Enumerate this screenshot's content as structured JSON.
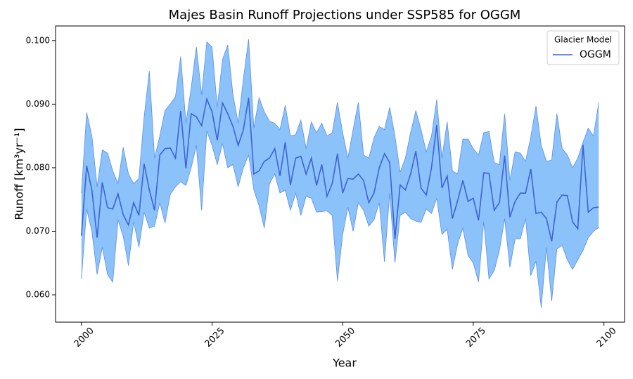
{
  "chart_data": {
    "type": "line-band",
    "title": "Majes Basin Runoff Projections under SSP585 for OGGM",
    "x_label": "Year",
    "y_label": "Runoff [km³yr⁻¹]",
    "legend_title": "Glacier Model",
    "legend_position": "upper right",
    "xlim": [
      1995.05,
      2103.95
    ],
    "ylim": [
      0.0557,
      0.1023
    ],
    "xticks": [
      2000,
      2025,
      2050,
      2075,
      2100
    ],
    "yticks": [
      {
        "value": 0.06,
        "label": "0.060"
      },
      {
        "value": 0.07,
        "label": "0.070"
      },
      {
        "value": 0.08,
        "label": "0.080"
      },
      {
        "value": 0.09,
        "label": "0.090"
      },
      {
        "value": 0.1,
        "label": "0.100"
      }
    ],
    "x": [
      2000,
      2001,
      2002,
      2003,
      2004,
      2005,
      2006,
      2007,
      2008,
      2009,
      2010,
      2011,
      2012,
      2013,
      2014,
      2015,
      2016,
      2017,
      2018,
      2019,
      2020,
      2021,
      2022,
      2023,
      2024,
      2025,
      2026,
      2027,
      2028,
      2029,
      2030,
      2031,
      2032,
      2033,
      2034,
      2035,
      2036,
      2037,
      2038,
      2039,
      2040,
      2041,
      2042,
      2043,
      2044,
      2045,
      2046,
      2047,
      2048,
      2049,
      2050,
      2051,
      2052,
      2053,
      2054,
      2055,
      2056,
      2057,
      2058,
      2059,
      2060,
      2061,
      2062,
      2063,
      2064,
      2065,
      2066,
      2067,
      2068,
      2069,
      2070,
      2071,
      2072,
      2073,
      2074,
      2075,
      2076,
      2077,
      2078,
      2079,
      2080,
      2081,
      2082,
      2083,
      2084,
      2085,
      2086,
      2087,
      2088,
      2089,
      2090,
      2091,
      2092,
      2093,
      2094,
      2095,
      2096,
      2097,
      2098,
      2099
    ],
    "series": [
      {
        "name": "OGGM",
        "color": "#3c63d6",
        "band_color": "#8cc2fa",
        "band_edge": "#5b8ee6",
        "values": [
          0.0693,
          0.0803,
          0.0765,
          0.069,
          0.0777,
          0.0737,
          0.0735,
          0.0759,
          0.0726,
          0.071,
          0.0745,
          0.0725,
          0.0806,
          0.0765,
          0.0733,
          0.082,
          0.083,
          0.0831,
          0.0815,
          0.0889,
          0.0799,
          0.0885,
          0.088,
          0.0866,
          0.0908,
          0.0888,
          0.0843,
          0.0902,
          0.0885,
          0.0865,
          0.0835,
          0.086,
          0.091,
          0.079,
          0.0795,
          0.081,
          0.0815,
          0.083,
          0.0787,
          0.084,
          0.0773,
          0.0815,
          0.0818,
          0.079,
          0.0815,
          0.0772,
          0.0805,
          0.0755,
          0.0775,
          0.0822,
          0.076,
          0.0783,
          0.0782,
          0.079,
          0.078,
          0.0745,
          0.076,
          0.08,
          0.0822,
          0.0808,
          0.0688,
          0.0773,
          0.0765,
          0.079,
          0.0826,
          0.0768,
          0.0757,
          0.08,
          0.0867,
          0.0768,
          0.0787,
          0.072,
          0.0748,
          0.078,
          0.0747,
          0.0752,
          0.0717,
          0.0792,
          0.0791,
          0.0733,
          0.0745,
          0.0819,
          0.0722,
          0.0747,
          0.076,
          0.076,
          0.0798,
          0.0728,
          0.073,
          0.072,
          0.0684,
          0.0746,
          0.0757,
          0.0756,
          0.0715,
          0.0704,
          0.0836,
          0.073,
          0.0737,
          0.0738
        ],
        "upper": [
          0.076,
          0.0887,
          0.085,
          0.077,
          0.0828,
          0.0823,
          0.0795,
          0.0775,
          0.0832,
          0.079,
          0.0775,
          0.0783,
          0.088,
          0.0952,
          0.0815,
          0.085,
          0.089,
          0.09,
          0.0912,
          0.0975,
          0.087,
          0.0925,
          0.099,
          0.0915,
          0.0998,
          0.099,
          0.0895,
          0.097,
          0.0993,
          0.0915,
          0.087,
          0.094,
          0.1002,
          0.0862,
          0.091,
          0.0888,
          0.0873,
          0.087,
          0.086,
          0.0898,
          0.085,
          0.0852,
          0.0875,
          0.083,
          0.0872,
          0.0855,
          0.087,
          0.085,
          0.0855,
          0.0903,
          0.0855,
          0.0815,
          0.086,
          0.0903,
          0.082,
          0.0815,
          0.0847,
          0.0865,
          0.086,
          0.0895,
          0.085,
          0.0793,
          0.0815,
          0.0855,
          0.089,
          0.086,
          0.0825,
          0.085,
          0.0907,
          0.0815,
          0.0872,
          0.0795,
          0.079,
          0.0845,
          0.0845,
          0.083,
          0.082,
          0.0855,
          0.0857,
          0.0808,
          0.0805,
          0.0885,
          0.078,
          0.0825,
          0.0823,
          0.081,
          0.0848,
          0.0897,
          0.0835,
          0.081,
          0.0812,
          0.0885,
          0.083,
          0.082,
          0.08,
          0.0815,
          0.084,
          0.0862,
          0.085,
          0.0902
        ],
        "lower": [
          0.0625,
          0.0735,
          0.07,
          0.0632,
          0.0675,
          0.0632,
          0.062,
          0.0718,
          0.0692,
          0.0646,
          0.0715,
          0.0675,
          0.073,
          0.0705,
          0.0708,
          0.0745,
          0.0713,
          0.0758,
          0.077,
          0.0778,
          0.0772,
          0.08,
          0.0835,
          0.0733,
          0.0858,
          0.0835,
          0.0805,
          0.0838,
          0.08,
          0.0805,
          0.077,
          0.08,
          0.082,
          0.0765,
          0.074,
          0.0705,
          0.0775,
          0.079,
          0.076,
          0.0765,
          0.0733,
          0.076,
          0.0725,
          0.0755,
          0.0752,
          0.073,
          0.0731,
          0.0732,
          0.0725,
          0.0622,
          0.0695,
          0.0738,
          0.07,
          0.0745,
          0.0733,
          0.0708,
          0.0718,
          0.0745,
          0.0652,
          0.076,
          0.065,
          0.0725,
          0.073,
          0.072,
          0.0716,
          0.0714,
          0.0735,
          0.0728,
          0.0752,
          0.0695,
          0.0703,
          0.064,
          0.068,
          0.0705,
          0.0662,
          0.065,
          0.062,
          0.0715,
          0.0625,
          0.0638,
          0.067,
          0.072,
          0.0643,
          0.0688,
          0.0688,
          0.072,
          0.063,
          0.0653,
          0.058,
          0.0675,
          0.059,
          0.0672,
          0.0678,
          0.0655,
          0.064,
          0.0655,
          0.067,
          0.069,
          0.07,
          0.0706
        ]
      }
    ]
  }
}
